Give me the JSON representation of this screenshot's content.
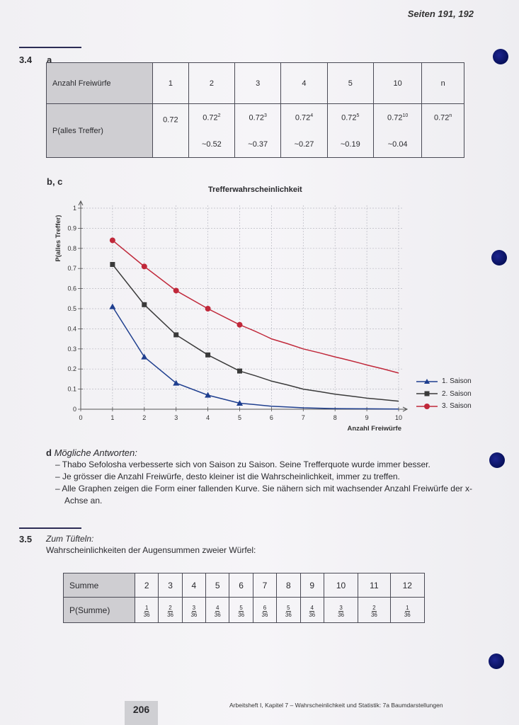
{
  "header": {
    "pages": "Seiten 191, 192"
  },
  "section_34": {
    "number": "3.4",
    "part_a": "a",
    "table": {
      "row1_label": "Anzahl Freiwürfe",
      "row2_label": "P(alles Treffer)",
      "columns": [
        {
          "n": "1",
          "base": "0.72",
          "exp": "",
          "approx": ""
        },
        {
          "n": "2",
          "base": "0.72",
          "exp": "2",
          "approx": "~0.52"
        },
        {
          "n": "3",
          "base": "0.72",
          "exp": "3",
          "approx": "~0.37"
        },
        {
          "n": "4",
          "base": "0.72",
          "exp": "4",
          "approx": "~0.27"
        },
        {
          "n": "5",
          "base": "0.72",
          "exp": "5",
          "approx": "~0.19"
        },
        {
          "n": "10",
          "base": "0.72",
          "exp": "10",
          "approx": "~0.04"
        },
        {
          "n": "n",
          "base": "0.72",
          "exp": "n",
          "approx": ""
        }
      ]
    },
    "part_bc": "b, c"
  },
  "chart_data": {
    "type": "line",
    "title": "Trefferwahrscheinlichkeit",
    "xlabel": "Anzahl Freiwürfe",
    "ylabel": "P(alles Treffer)",
    "xlim": [
      0,
      10
    ],
    "ylim": [
      0,
      1
    ],
    "x_ticks": [
      "0",
      "1",
      "2",
      "3",
      "4",
      "5",
      "6",
      "7",
      "8",
      "9",
      "10"
    ],
    "y_ticks": [
      "0",
      "0.1",
      "0.2",
      "0.3",
      "0.4",
      "0.5",
      "0.6",
      "0.7",
      "0.8",
      "0.9",
      "1"
    ],
    "grid": true,
    "legend_position": "right",
    "series": [
      {
        "name": "1. Saison",
        "color": "#1f3f8f",
        "marker": "triangle",
        "points": [
          [
            1,
            0.51
          ],
          [
            2,
            0.26
          ],
          [
            3,
            0.13
          ],
          [
            4,
            0.07
          ],
          [
            5,
            0.03
          ]
        ],
        "curve": [
          [
            5,
            0.03
          ],
          [
            6,
            0.015
          ],
          [
            7,
            0.007
          ],
          [
            8,
            0.003
          ],
          [
            9,
            0.002
          ],
          [
            10,
            0.001
          ]
        ]
      },
      {
        "name": "2. Saison",
        "color": "#3a3a3a",
        "marker": "square",
        "points": [
          [
            1,
            0.72
          ],
          [
            2,
            0.52
          ],
          [
            3,
            0.37
          ],
          [
            4,
            0.27
          ],
          [
            5,
            0.19
          ]
        ],
        "curve": [
          [
            5,
            0.19
          ],
          [
            6,
            0.14
          ],
          [
            7,
            0.1
          ],
          [
            8,
            0.075
          ],
          [
            9,
            0.055
          ],
          [
            10,
            0.04
          ]
        ]
      },
      {
        "name": "3. Saison",
        "color": "#c0283a",
        "marker": "circle",
        "points": [
          [
            1,
            0.84
          ],
          [
            2,
            0.71
          ],
          [
            3,
            0.59
          ],
          [
            4,
            0.5
          ],
          [
            5,
            0.42
          ]
        ],
        "curve": [
          [
            5,
            0.42
          ],
          [
            6,
            0.35
          ],
          [
            7,
            0.3
          ],
          [
            8,
            0.26
          ],
          [
            9,
            0.22
          ],
          [
            10,
            0.18
          ]
        ]
      }
    ]
  },
  "part_d": {
    "label": "d",
    "title": "Mögliche Antworten:",
    "answers": [
      "– Thabo Sefolosha verbesserte sich von Saison zu Saison. Seine Trefferquote wurde immer besser.",
      "– Je grösser die Anzahl Freiwürfe, desto kleiner ist die Wahrscheinlichkeit, immer zu treffen.",
      "– Alle Graphen zeigen die Form einer fallenden Kurve. Sie nähern sich mit wachsender Anzahl Freiwürfe der x-Achse an."
    ]
  },
  "section_35": {
    "number": "3.5",
    "title": "Zum Tüfteln:",
    "text": "Wahrscheinlichkeiten der Augensummen zweier Würfel:",
    "table": {
      "row1_label": "Summe",
      "row2_label": "P(Summe)",
      "denominator": "36",
      "columns": [
        {
          "sum": "2",
          "num": "1"
        },
        {
          "sum": "3",
          "num": "2"
        },
        {
          "sum": "4",
          "num": "3"
        },
        {
          "sum": "5",
          "num": "4"
        },
        {
          "sum": "6",
          "num": "5"
        },
        {
          "sum": "7",
          "num": "6"
        },
        {
          "sum": "8",
          "num": "5"
        },
        {
          "sum": "9",
          "num": "4"
        },
        {
          "sum": "10",
          "num": "3"
        },
        {
          "sum": "11",
          "num": "2"
        },
        {
          "sum": "12",
          "num": "1"
        }
      ]
    }
  },
  "footer": {
    "page_number": "206",
    "text": "Arbeitsheft I, Kapitel 7 – Wahrscheinlichkeit und Statistik: 7a Baumdarstellungen"
  },
  "colors": {
    "hole": "#0b1470",
    "table_header": "#cfced2"
  }
}
